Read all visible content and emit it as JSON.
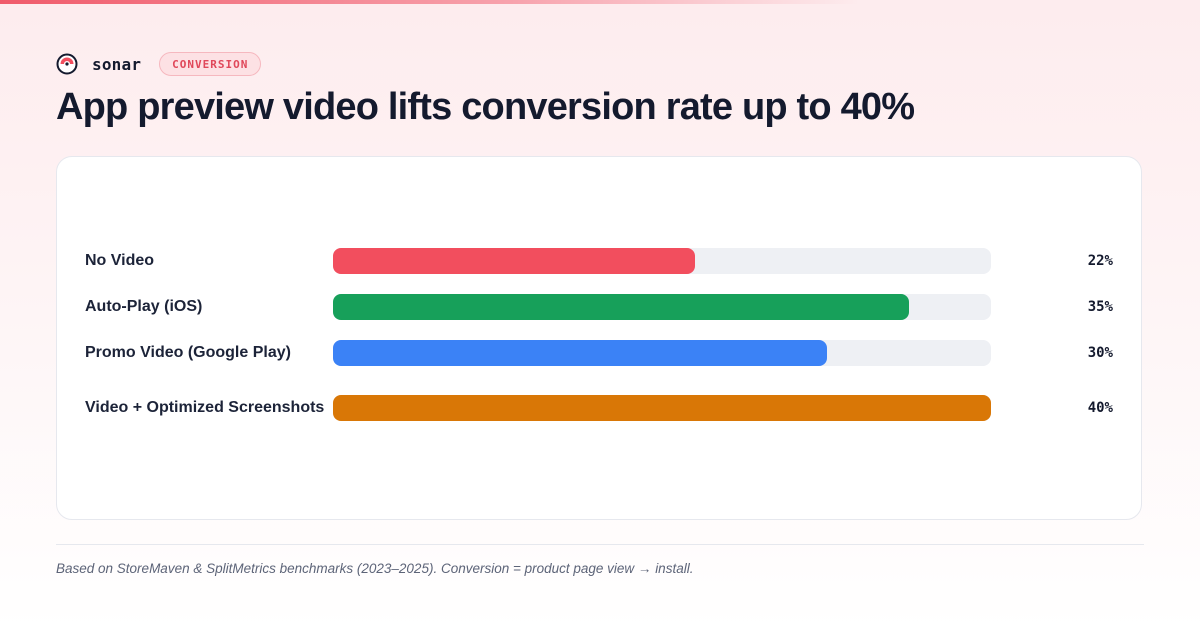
{
  "brand": {
    "name": "sonar",
    "badge": "CONVERSION"
  },
  "title": "App preview video lifts conversion rate up to 40%",
  "footnote": "Based on StoreMaven & SplitMetrics benchmarks (2023–2025). Conversion = product page view → install.",
  "colors": {
    "accent": "#f24e5e",
    "no_video": "#f24e5e",
    "auto_play": "#17a05a",
    "promo_video": "#3b82f6",
    "video_optimized": "#d97706",
    "track": "#eef0f4"
  },
  "chart_data": {
    "type": "bar",
    "orientation": "horizontal",
    "categories": [
      "No Video",
      "Auto-Play (iOS)",
      "Promo Video (Google Play)",
      "Video + Optimized Screenshots"
    ],
    "values": [
      22,
      35,
      30,
      40
    ],
    "value_labels": [
      "22%",
      "35%",
      "30%",
      "40%"
    ],
    "colors": [
      "#f24e5e",
      "#17a05a",
      "#3b82f6",
      "#d97706"
    ],
    "xlim": [
      0,
      40
    ],
    "grid": false,
    "legend": "none"
  }
}
